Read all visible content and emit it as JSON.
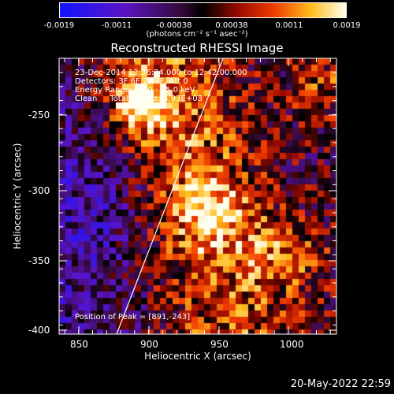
{
  "colorbar": {
    "ticks": [
      "-0.0019",
      "-0.0011",
      "-0.00038",
      "0.00038",
      "0.0011",
      "0.0019"
    ],
    "units": "(photons cm⁻² s⁻¹ asec⁻²)"
  },
  "title": "Reconstructed RHESSI Image",
  "info": {
    "line1": "23-Dec-2014 12:36:24.000 to 12:42:00.000",
    "line2": "Detectors: 3F 6F 7F 9F, Att 0",
    "line3": "Energy Range: 12.0 - 25.0 keV",
    "line4": "Clean     Total Counts: 4.93E+03"
  },
  "peak": "Position of Peak = [891,-243]",
  "axes": {
    "xlabel": "Heliocentric X (arcsec)",
    "ylabel": "Heliocentric Y (arcsec)",
    "xticks": [
      "850",
      "900",
      "950",
      "1000"
    ],
    "yticks": [
      "-250",
      "-300",
      "-350",
      "-400"
    ]
  },
  "timestamp": "20-May-2022 22:59"
}
